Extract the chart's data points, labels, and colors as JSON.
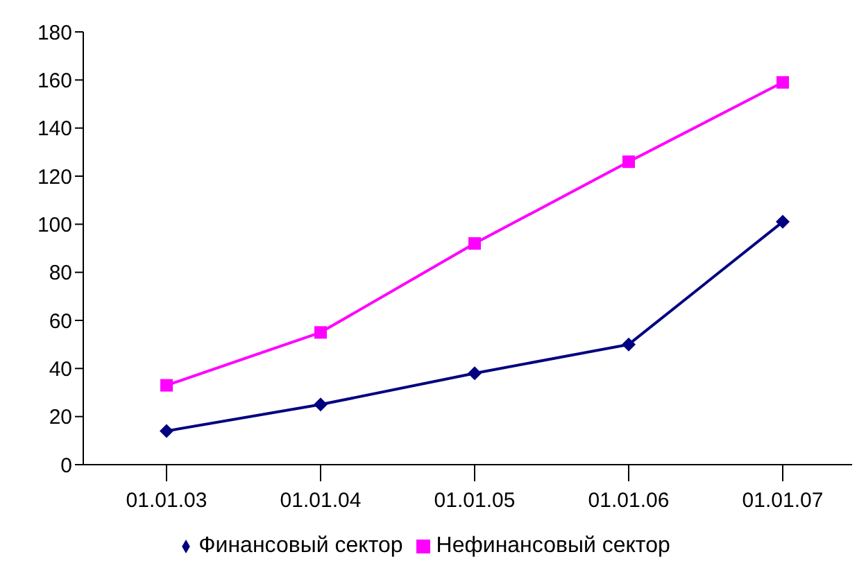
{
  "chart_data": {
    "type": "line",
    "categories": [
      "01.01.03",
      "01.01.04",
      "01.01.05",
      "01.01.06",
      "01.01.07"
    ],
    "series": [
      {
        "name": "Финансовый сектор",
        "color": "#000080",
        "marker": "diamond",
        "values": [
          14,
          25,
          38,
          50,
          101
        ]
      },
      {
        "name": "Нефинансовый сектор",
        "color": "#ff00ff",
        "marker": "square",
        "values": [
          33,
          55,
          92,
          126,
          159
        ]
      }
    ],
    "ylim": [
      0,
      180
    ],
    "yticks": [
      0,
      20,
      40,
      60,
      80,
      100,
      120,
      140,
      160,
      180
    ],
    "grid": false,
    "legend": "bottom"
  }
}
